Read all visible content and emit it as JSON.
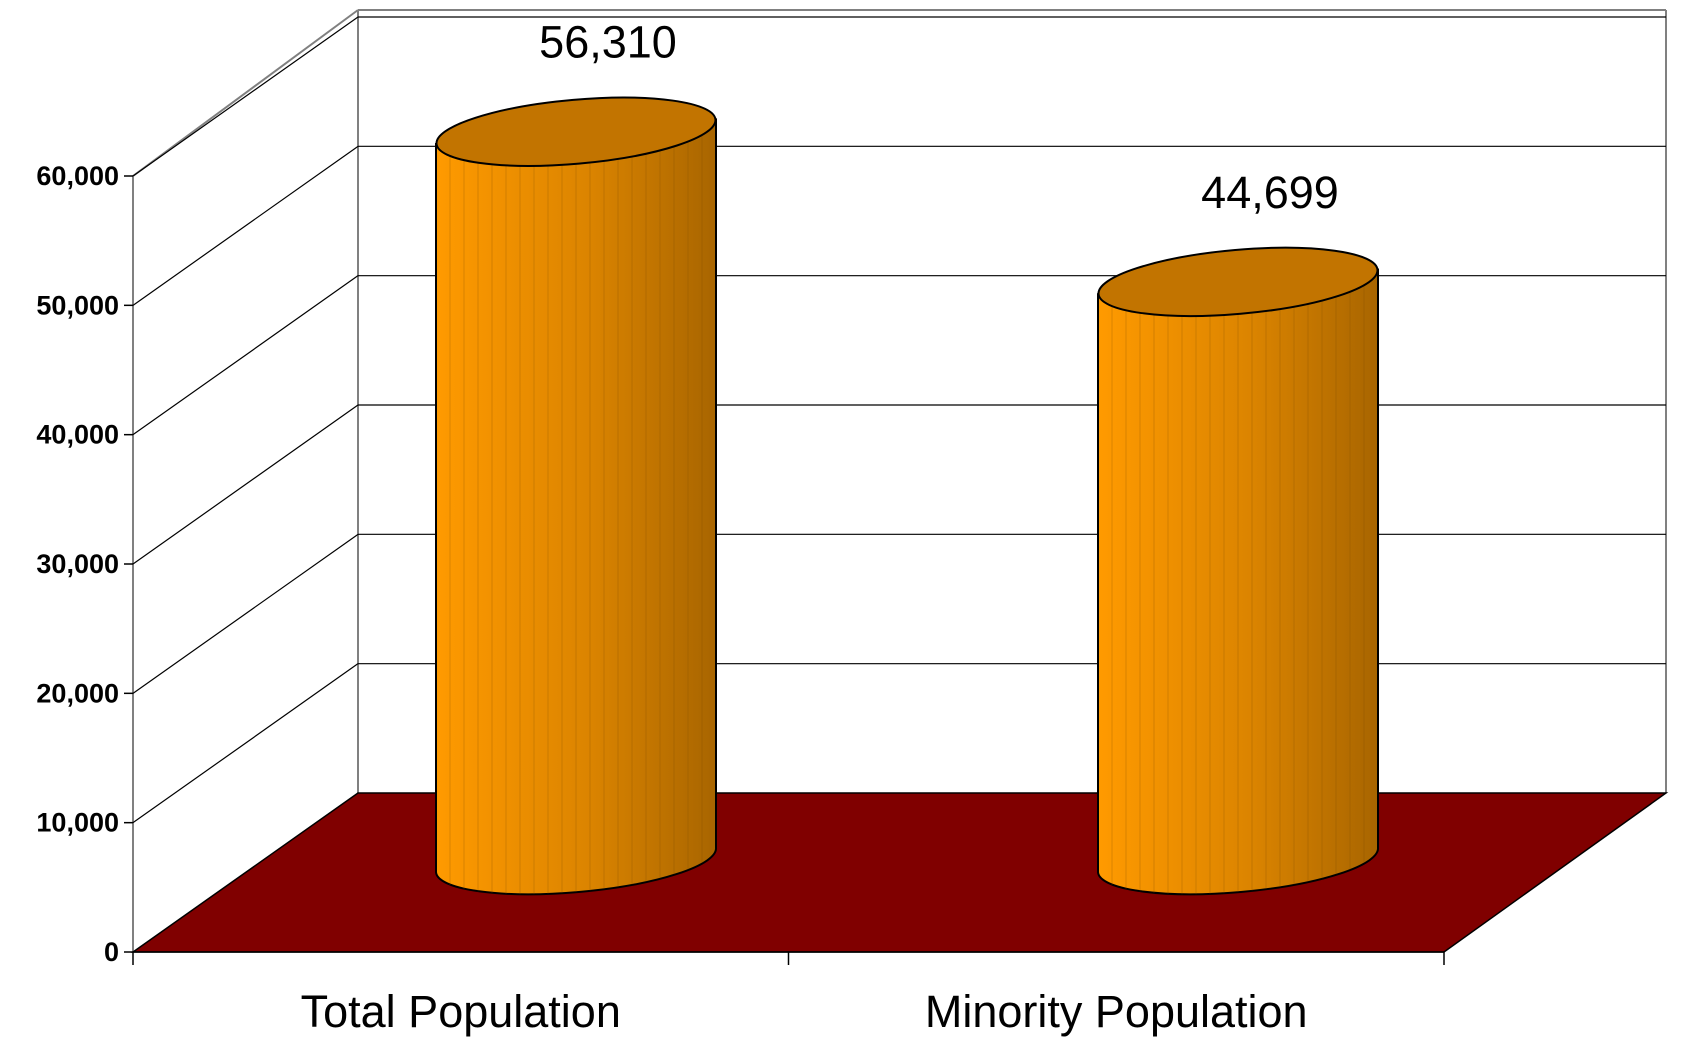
{
  "chart_data": {
    "type": "bar",
    "style": "3d-cylinder",
    "categories": [
      "Total Population",
      "Minority Population"
    ],
    "values": [
      56310,
      44699
    ],
    "data_labels": [
      "56,310",
      "44,699"
    ],
    "ylim": [
      0,
      60000
    ],
    "yticks": [
      0,
      10000,
      20000,
      30000,
      40000,
      50000,
      60000
    ],
    "ytick_labels": [
      "0",
      "10,000",
      "20,000",
      "30,000",
      "40,000",
      "50,000",
      "60,000"
    ],
    "title": "",
    "xlabel": "",
    "ylabel": "",
    "grid": true,
    "legend": "none",
    "colors": {
      "bar": "#FF9900",
      "bar_top": "#C27400",
      "floor": "#800000",
      "gridline": "#000000",
      "wall_edge": "#808080"
    }
  }
}
